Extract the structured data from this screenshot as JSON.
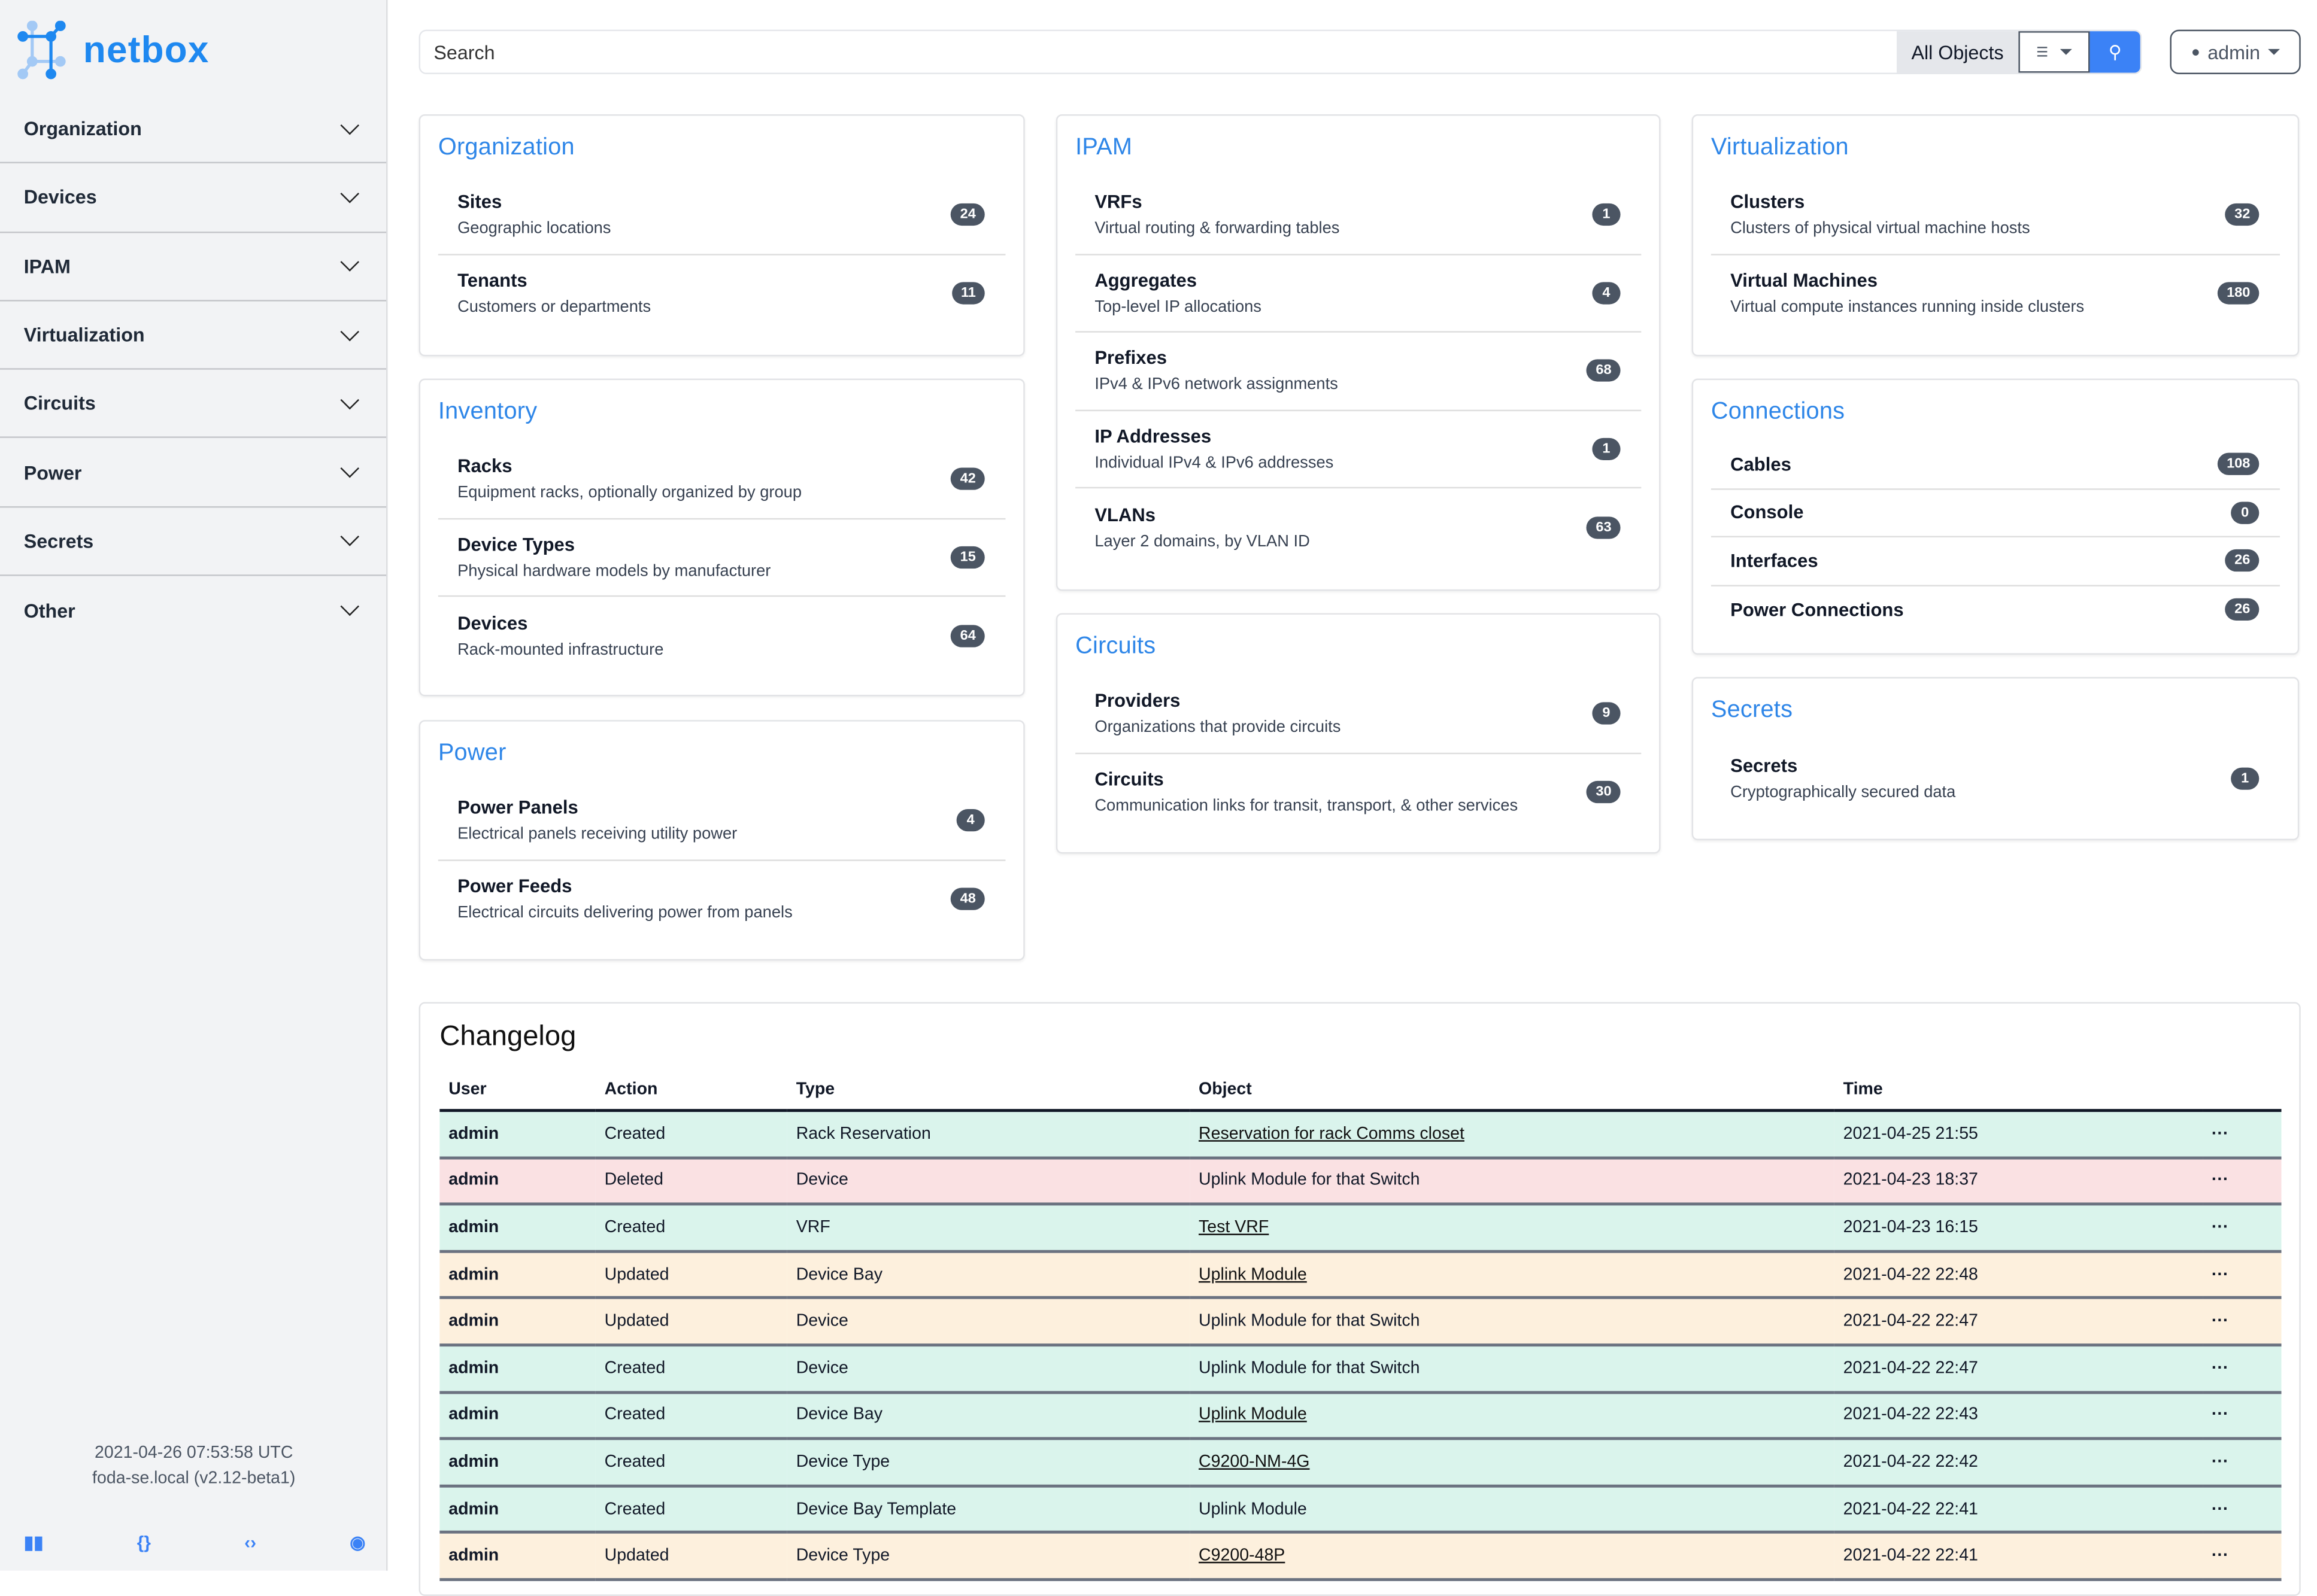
{
  "brand": {
    "name": "netbox",
    "color": "#1e88f0"
  },
  "sidebar": {
    "items": [
      {
        "label": "Organization"
      },
      {
        "label": "Devices"
      },
      {
        "label": "IPAM"
      },
      {
        "label": "Virtualization"
      },
      {
        "label": "Circuits"
      },
      {
        "label": "Power"
      },
      {
        "label": "Secrets"
      },
      {
        "label": "Other"
      }
    ],
    "footer": {
      "timestamp": "2021-04-26 07:53:58 UTC",
      "host": "foda-se.local (v2.12-beta1)"
    },
    "footer_icons": [
      "book-icon",
      "braces-icon",
      "code-icon",
      "lifebuoy-icon"
    ]
  },
  "search": {
    "placeholder": "Search",
    "scope": "All Objects"
  },
  "user": {
    "name": "admin"
  },
  "cards": {
    "organization": {
      "title": "Organization",
      "items": [
        {
          "name": "Sites",
          "desc": "Geographic locations",
          "count": "24"
        },
        {
          "name": "Tenants",
          "desc": "Customers or departments",
          "count": "11"
        }
      ]
    },
    "inventory": {
      "title": "Inventory",
      "items": [
        {
          "name": "Racks",
          "desc": "Equipment racks, optionally organized by group",
          "count": "42"
        },
        {
          "name": "Device Types",
          "desc": "Physical hardware models by manufacturer",
          "count": "15"
        },
        {
          "name": "Devices",
          "desc": "Rack-mounted infrastructure",
          "count": "64"
        }
      ]
    },
    "power": {
      "title": "Power",
      "items": [
        {
          "name": "Power Panels",
          "desc": "Electrical panels receiving utility power",
          "count": "4"
        },
        {
          "name": "Power Feeds",
          "desc": "Electrical circuits delivering power from panels",
          "count": "48"
        }
      ]
    },
    "ipam": {
      "title": "IPAM",
      "items": [
        {
          "name": "VRFs",
          "desc": "Virtual routing & forwarding tables",
          "count": "1"
        },
        {
          "name": "Aggregates",
          "desc": "Top-level IP allocations",
          "count": "4"
        },
        {
          "name": "Prefixes",
          "desc": "IPv4 & IPv6 network assignments",
          "count": "68"
        },
        {
          "name": "IP Addresses",
          "desc": "Individual IPv4 & IPv6 addresses",
          "count": "1"
        },
        {
          "name": "VLANs",
          "desc": "Layer 2 domains, by VLAN ID",
          "count": "63"
        }
      ]
    },
    "circuits": {
      "title": "Circuits",
      "items": [
        {
          "name": "Providers",
          "desc": "Organizations that provide circuits",
          "count": "9"
        },
        {
          "name": "Circuits",
          "desc": "Communication links for transit, transport, & other services",
          "count": "30"
        }
      ]
    },
    "virtualization": {
      "title": "Virtualization",
      "items": [
        {
          "name": "Clusters",
          "desc": "Clusters of physical virtual machine hosts",
          "count": "32"
        },
        {
          "name": "Virtual Machines",
          "desc": "Virtual compute instances running inside clusters",
          "count": "180"
        }
      ]
    },
    "connections": {
      "title": "Connections",
      "items": [
        {
          "name": "Cables",
          "count": "108"
        },
        {
          "name": "Console",
          "count": "0"
        },
        {
          "name": "Interfaces",
          "count": "26"
        },
        {
          "name": "Power Connections",
          "count": "26"
        }
      ]
    },
    "secrets": {
      "title": "Secrets",
      "items": [
        {
          "name": "Secrets",
          "desc": "Cryptographically secured data",
          "count": "1"
        }
      ]
    }
  },
  "changelog": {
    "title": "Changelog",
    "columns": [
      "User",
      "Action",
      "Type",
      "Object",
      "Time"
    ],
    "row_colors": {
      "created": "#daf4ec",
      "deleted": "#fae1e3",
      "updated": "#fdf0dd"
    },
    "rows": [
      {
        "user": "admin",
        "action": "Created",
        "type": "Rack Reservation",
        "object": "Reservation for rack Comms closet",
        "link": true,
        "time": "2021-04-25 21:55"
      },
      {
        "user": "admin",
        "action": "Deleted",
        "type": "Device",
        "object": "Uplink Module for that Switch",
        "link": false,
        "time": "2021-04-23 18:37"
      },
      {
        "user": "admin",
        "action": "Created",
        "type": "VRF",
        "object": "Test VRF",
        "link": true,
        "time": "2021-04-23 16:15"
      },
      {
        "user": "admin",
        "action": "Updated",
        "type": "Device Bay",
        "object": "Uplink Module",
        "link": true,
        "time": "2021-04-22 22:48"
      },
      {
        "user": "admin",
        "action": "Updated",
        "type": "Device",
        "object": "Uplink Module for that Switch",
        "link": false,
        "time": "2021-04-22 22:47"
      },
      {
        "user": "admin",
        "action": "Created",
        "type": "Device",
        "object": "Uplink Module for that Switch",
        "link": false,
        "time": "2021-04-22 22:47"
      },
      {
        "user": "admin",
        "action": "Created",
        "type": "Device Bay",
        "object": "Uplink Module",
        "link": true,
        "time": "2021-04-22 22:43"
      },
      {
        "user": "admin",
        "action": "Created",
        "type": "Device Type",
        "object": "C9200-NM-4G",
        "link": true,
        "time": "2021-04-22 22:42"
      },
      {
        "user": "admin",
        "action": "Created",
        "type": "Device Bay Template",
        "object": "Uplink Module",
        "link": false,
        "time": "2021-04-22 22:41"
      },
      {
        "user": "admin",
        "action": "Updated",
        "type": "Device Type",
        "object": "C9200-48P",
        "link": true,
        "time": "2021-04-22 22:41"
      }
    ]
  }
}
